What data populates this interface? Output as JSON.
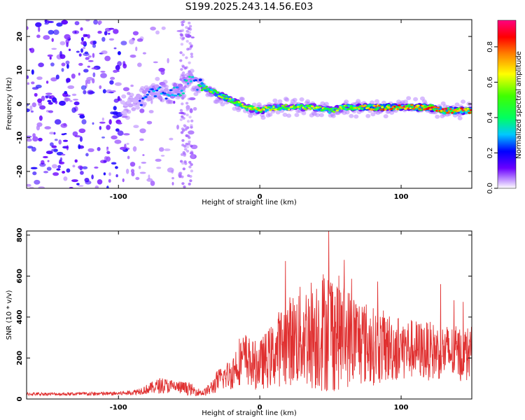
{
  "chart_data": [
    {
      "type": "heatmap",
      "title": "S199.2025.243.14.56.E03",
      "xlabel": "Height of straight line (km)",
      "ylabel": "Frequency (Hz)",
      "xlim": [
        -165,
        150
      ],
      "ylim": [
        -25,
        25
      ],
      "xticks": [
        -100,
        0,
        100
      ],
      "yticks": [
        -20,
        -10,
        0,
        10,
        20
      ],
      "colorbar": {
        "label": "Normalized spectral amplitude",
        "range": [
          0,
          0.95
        ],
        "ticks": [
          "0.0",
          "0.2",
          "0.4",
          "0.6",
          "0.8"
        ],
        "tick_values": [
          0.0,
          0.2,
          0.4,
          0.6,
          0.8
        ]
      },
      "ridge": {
        "x": [
          -95,
          -85,
          -75,
          -65,
          -55,
          -50,
          -45,
          -40,
          -30,
          -20,
          -10,
          0,
          10,
          20,
          30,
          40,
          50,
          60,
          70,
          80,
          90,
          100,
          110,
          120,
          130,
          140,
          150
        ],
        "freq": [
          -1,
          1,
          4,
          3,
          4,
          8,
          6,
          5,
          3,
          1,
          -1,
          -2,
          -1,
          -1,
          -1,
          -1,
          -2,
          -1,
          -1,
          -1,
          -1,
          -1,
          -1,
          -1,
          -2,
          -2,
          -2
        ],
        "peak_amplitude": [
          0.2,
          0.25,
          0.3,
          0.3,
          0.35,
          0.35,
          0.3,
          0.5,
          0.55,
          0.6,
          0.6,
          0.7,
          0.6,
          0.6,
          0.65,
          0.6,
          0.55,
          0.6,
          0.7,
          0.75,
          0.8,
          0.85,
          0.85,
          0.85,
          0.85,
          0.85,
          0.9
        ]
      }
    },
    {
      "type": "line",
      "xlabel": "Height of straight line (km)",
      "ylabel": "SNR (10 * v/v)",
      "xlim": [
        -165,
        150
      ],
      "ylim": [
        0,
        820
      ],
      "xticks": [
        -100,
        0,
        100
      ],
      "yticks": [
        0,
        200,
        400,
        600,
        800
      ],
      "color": "#e03030",
      "series": [
        {
          "name": "SNR",
          "x": [
            -165,
            -140,
            -120,
            -100,
            -90,
            -80,
            -70,
            -60,
            -50,
            -45,
            -40,
            -35,
            -30,
            -25,
            -20,
            -15,
            -10,
            -5,
            0,
            5,
            10,
            15,
            20,
            30,
            40,
            50,
            60,
            70,
            80,
            90,
            100,
            110,
            120,
            130,
            140,
            150
          ],
          "base": [
            22,
            22,
            22,
            24,
            28,
            40,
            55,
            50,
            40,
            30,
            25,
            40,
            70,
            90,
            100,
            150,
            160,
            130,
            130,
            150,
            170,
            200,
            220,
            230,
            240,
            250,
            230,
            220,
            200,
            200,
            200,
            200,
            190,
            190,
            180,
            180
          ],
          "amp": [
            10,
            10,
            12,
            12,
            15,
            30,
            50,
            40,
            40,
            25,
            20,
            40,
            70,
            80,
            100,
            150,
            160,
            150,
            150,
            180,
            200,
            250,
            270,
            320,
            360,
            400,
            320,
            280,
            240,
            220,
            200,
            180,
            180,
            170,
            170,
            170
          ]
        }
      ]
    }
  ]
}
